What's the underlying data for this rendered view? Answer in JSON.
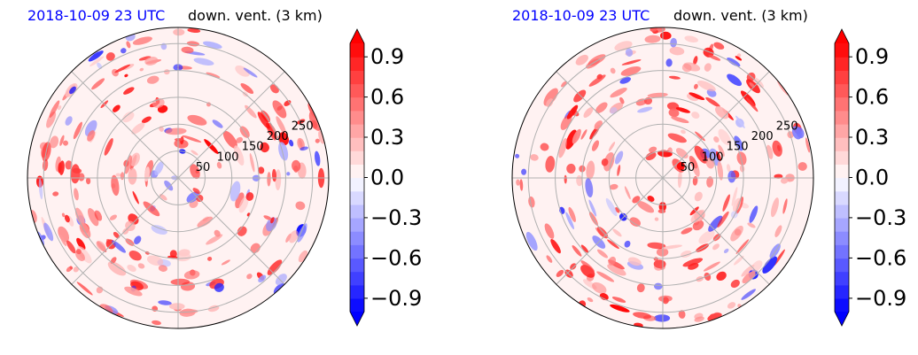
{
  "panels": [
    {
      "title_left": "2018-10-09 23 UTC",
      "title_right": "down. vent. (3 km)",
      "chart_data": {
        "type": "heatmap",
        "projection": "polar",
        "field": "down. vent. (3 km)",
        "time": "2018-10-09 23 UTC",
        "radial_ticks": [
          50,
          100,
          150,
          200,
          250
        ],
        "angular_gridlines_deg": [
          0,
          45,
          90,
          135,
          180,
          225,
          270,
          315
        ],
        "grid": true,
        "colorbar": {
          "range": [
            -1.0,
            1.0
          ],
          "ticks": [
            "−0.9",
            "−0.6",
            "−0.3",
            "0.0",
            "0.3",
            "0.6",
            "0.9"
          ],
          "tick_values": [
            -0.9,
            -0.6,
            -0.3,
            0.0,
            0.3,
            0.6,
            0.9
          ],
          "extend": "both",
          "colormap": "bwr",
          "levels": 20
        }
      }
    },
    {
      "title_left": "2018-10-09 23 UTC",
      "title_right": "down. vent. (3 km)",
      "chart_data": {
        "type": "heatmap",
        "projection": "polar",
        "field": "down. vent. (3 km)",
        "time": "2018-10-09 23 UTC",
        "radial_ticks": [
          50,
          100,
          150,
          200,
          250
        ],
        "angular_gridlines_deg": [
          0,
          45,
          90,
          135,
          180,
          225,
          270,
          315
        ],
        "grid": true,
        "colorbar": {
          "range": [
            -1.0,
            1.0
          ],
          "ticks": [
            "−0.9",
            "−0.6",
            "−0.3",
            "0.0",
            "0.3",
            "0.6",
            "0.9"
          ],
          "tick_values": [
            -0.9,
            -0.6,
            -0.3,
            0.0,
            0.3,
            0.6,
            0.9
          ],
          "extend": "both",
          "colormap": "bwr",
          "levels": 20
        }
      }
    }
  ],
  "colors": {
    "positive": "#ff0000",
    "negative": "#0000ff",
    "neutral": "#ffffff",
    "title_time": "#0000ff",
    "grid": "#b0b0b0"
  }
}
